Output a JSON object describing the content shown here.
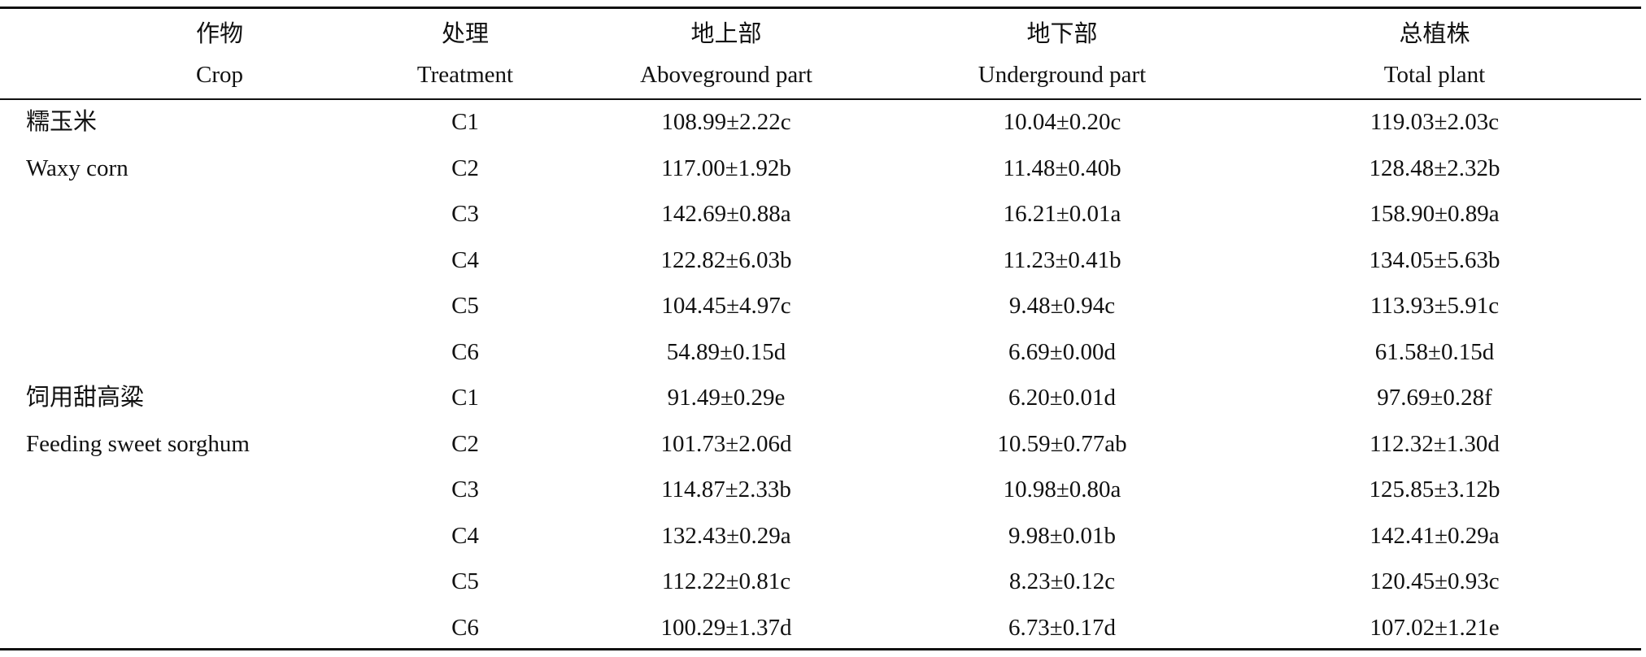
{
  "table": {
    "header": [
      {
        "zh": "作物",
        "en": "Crop"
      },
      {
        "zh": "处理",
        "en": "Treatment"
      },
      {
        "zh": "地上部",
        "en": "Aboveground part"
      },
      {
        "zh": "地下部",
        "en": "Underground part"
      },
      {
        "zh": "总植株",
        "en": "Total plant"
      }
    ],
    "groups": [
      {
        "crop_zh": "糯玉米",
        "crop_en": "Waxy corn",
        "rows": [
          [
            "C1",
            "108.99±2.22c",
            "10.04±0.20c",
            "119.03±2.03c"
          ],
          [
            "C2",
            "117.00±1.92b",
            "11.48±0.40b",
            "128.48±2.32b"
          ],
          [
            "C3",
            "142.69±0.88a",
            "16.21±0.01a",
            "158.90±0.89a"
          ],
          [
            "C4",
            "122.82±6.03b",
            "11.23±0.41b",
            "134.05±5.63b"
          ],
          [
            "C5",
            "104.45±4.97c",
            "9.48±0.94c",
            "113.93±5.91c"
          ],
          [
            "C6",
            "54.89±0.15d",
            "6.69±0.00d",
            "61.58±0.15d"
          ]
        ]
      },
      {
        "crop_zh": "饲用甜高粱",
        "crop_en": "Feeding sweet sorghum",
        "rows": [
          [
            "C1",
            "91.49±0.29e",
            "6.20±0.01d",
            "97.69±0.28f"
          ],
          [
            "C2",
            "101.73±2.06d",
            "10.59±0.77ab",
            "112.32±1.30d"
          ],
          [
            "C3",
            "114.87±2.33b",
            "10.98±0.80a",
            "125.85±3.12b"
          ],
          [
            "C4",
            "132.43±0.29a",
            "9.98±0.01b",
            "142.41±0.29a"
          ],
          [
            "C5",
            "112.22±0.81c",
            "8.23±0.12c",
            "120.45±0.93c"
          ],
          [
            "C6",
            "100.29±1.37d",
            "6.73±0.17d",
            "107.02±1.21e"
          ]
        ]
      }
    ]
  }
}
